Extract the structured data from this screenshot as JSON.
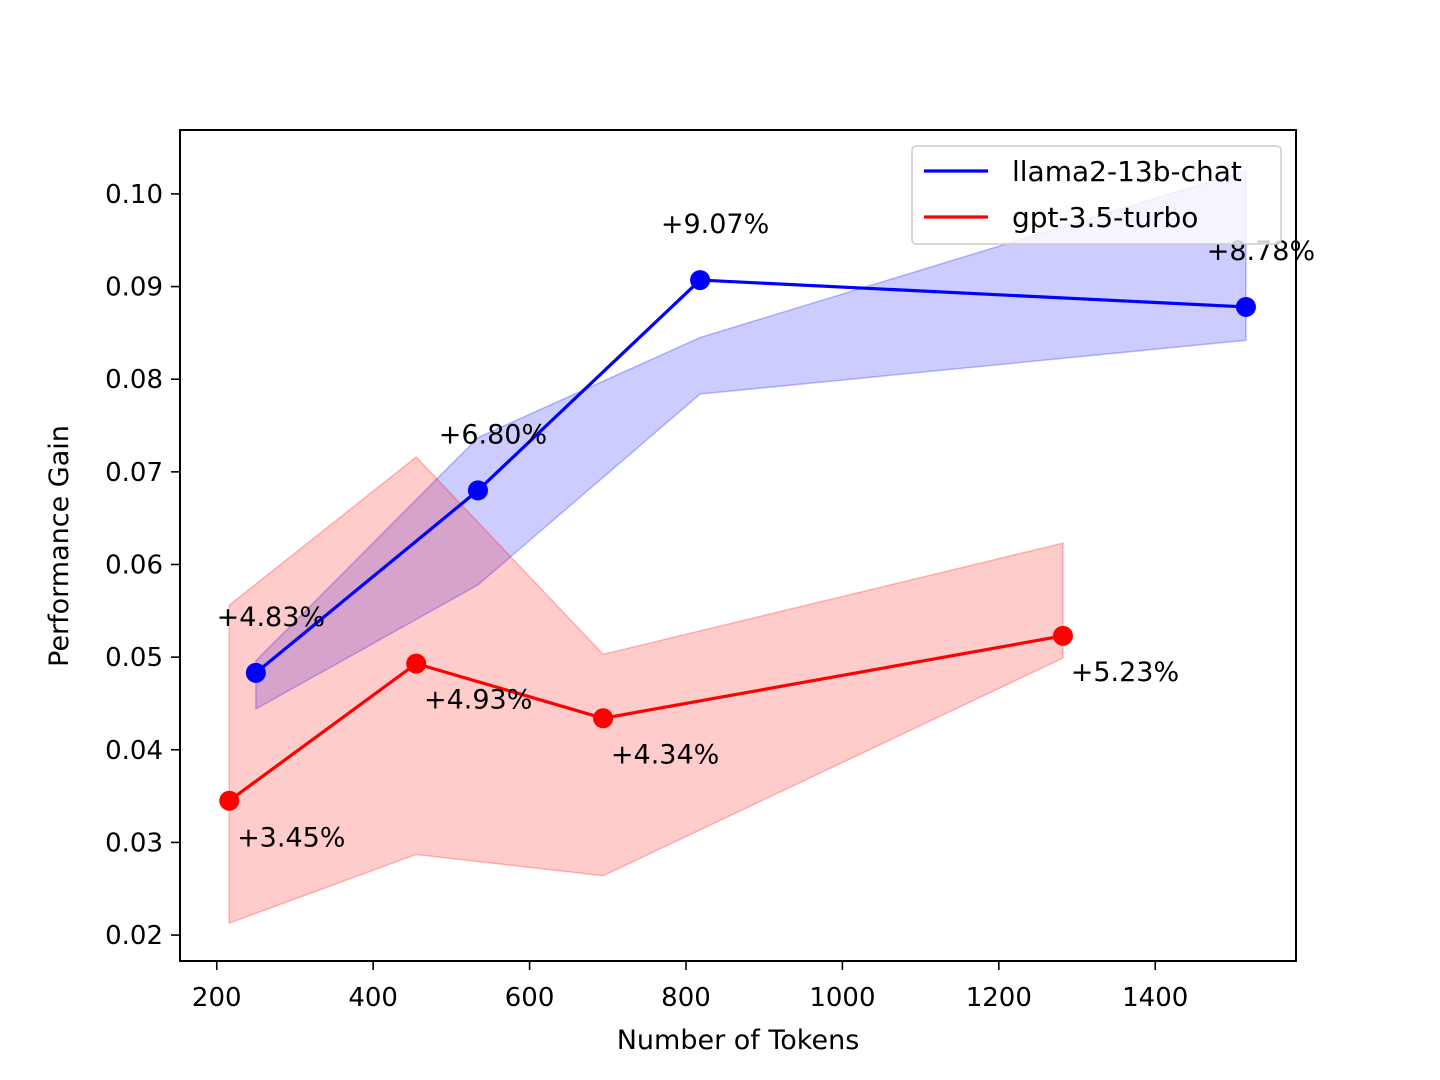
{
  "chart_data": {
    "type": "line",
    "title": "",
    "xlabel": "Number of Tokens",
    "ylabel": "Performance Gain",
    "xlim": [
      153,
      1580
    ],
    "ylim": [
      0.0172,
      0.1069
    ],
    "xticks": [
      200,
      400,
      600,
      800,
      1000,
      1200,
      1400
    ],
    "xtick_labels": [
      "200",
      "400",
      "600",
      "800",
      "1000",
      "1200",
      "1400"
    ],
    "yticks": [
      0.02,
      0.03,
      0.04,
      0.05,
      0.06,
      0.07,
      0.08,
      0.09,
      0.1
    ],
    "ytick_labels": [
      "0.02",
      "0.03",
      "0.04",
      "0.05",
      "0.06",
      "0.07",
      "0.08",
      "0.09",
      "0.10"
    ],
    "grid": false,
    "legend_position": "top-right",
    "series": [
      {
        "name": "llama2-13b-chat",
        "color": "#0000ff",
        "fill_color": "#0000ff",
        "x": [
          250,
          534,
          818,
          1516
        ],
        "y": [
          0.0483,
          0.068,
          0.0907,
          0.0878
        ],
        "band_low": [
          0.0444,
          0.0578,
          0.0784,
          0.0842
        ],
        "band_high": [
          0.0496,
          0.0737,
          0.0845,
          0.1025
        ],
        "labels": [
          "+4.83%",
          "+6.80%",
          "+9.07%",
          "+8.78%"
        ]
      },
      {
        "name": "gpt-3.5-turbo",
        "color": "#ff0000",
        "fill_color": "#ff0000",
        "x": [
          216,
          455,
          694,
          1282
        ],
        "y": [
          0.0345,
          0.0493,
          0.0434,
          0.0523
        ],
        "band_low": [
          0.0213,
          0.0287,
          0.0264,
          0.0499
        ],
        "band_high": [
          0.0556,
          0.0716,
          0.0503,
          0.0623
        ],
        "labels": [
          "+3.45%",
          "+4.93%",
          "+4.34%",
          "+5.23%"
        ]
      }
    ]
  }
}
